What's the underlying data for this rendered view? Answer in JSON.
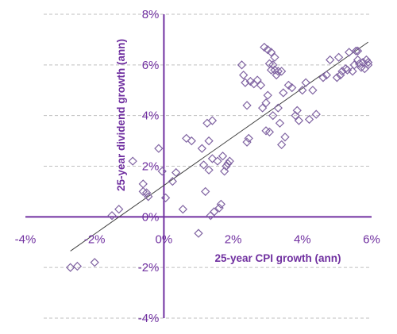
{
  "chart_data": {
    "type": "scatter",
    "title": "",
    "xlabel": "25-year CPI growth (ann)",
    "ylabel": "25-year dividend growth (ann)",
    "xlim": [
      -4,
      6
    ],
    "ylim": [
      -4,
      8
    ],
    "x_ticks": [
      -4,
      -2,
      0,
      2,
      4,
      6
    ],
    "y_ticks": [
      -4,
      -2,
      0,
      2,
      4,
      6,
      8
    ],
    "x_tick_labels": [
      "-4%",
      "-2%",
      "0%",
      "2%",
      "4%",
      "6%"
    ],
    "y_tick_labels": [
      "-4%",
      "-2%",
      "0%",
      "2%",
      "4%",
      "6%",
      "8%"
    ],
    "grid": "horizontal dashed",
    "legend": "none",
    "marker": "hollow-diamond",
    "colors": {
      "accent": "#7030a0",
      "grid": "#bfbfbf",
      "trendline": "#404040"
    },
    "trendline": {
      "x": [
        -2.7,
        5.9
      ],
      "y": [
        -1.35,
        6.9
      ]
    },
    "series": [
      {
        "values": [
          {
            "x": -2.7,
            "y": -2.0
          },
          {
            "x": -2.5,
            "y": -1.95
          },
          {
            "x": -2.0,
            "y": -1.8
          },
          {
            "x": -1.5,
            "y": 0.05
          },
          {
            "x": -1.3,
            "y": 0.3
          },
          {
            "x": -0.9,
            "y": 2.2
          },
          {
            "x": -0.6,
            "y": 1.3
          },
          {
            "x": -0.6,
            "y": 1.0
          },
          {
            "x": -0.5,
            "y": 0.95
          },
          {
            "x": -0.45,
            "y": 0.8
          },
          {
            "x": -0.15,
            "y": 2.7
          },
          {
            "x": -0.05,
            "y": 1.8
          },
          {
            "x": 0.05,
            "y": 0.75
          },
          {
            "x": 0.25,
            "y": 1.4
          },
          {
            "x": 0.35,
            "y": 1.75
          },
          {
            "x": 0.55,
            "y": 0.3
          },
          {
            "x": 0.65,
            "y": 3.1
          },
          {
            "x": 0.8,
            "y": 3.0
          },
          {
            "x": 1.0,
            "y": -0.65
          },
          {
            "x": 1.1,
            "y": 2.7
          },
          {
            "x": 1.15,
            "y": 2.05
          },
          {
            "x": 1.2,
            "y": 1.0
          },
          {
            "x": 1.25,
            "y": 3.7
          },
          {
            "x": 1.3,
            "y": 3.0
          },
          {
            "x": 1.3,
            "y": 1.85
          },
          {
            "x": 1.35,
            "y": 0.05
          },
          {
            "x": 1.4,
            "y": 3.8
          },
          {
            "x": 1.4,
            "y": 2.3
          },
          {
            "x": 1.45,
            "y": 0.2
          },
          {
            "x": 1.55,
            "y": 2.2
          },
          {
            "x": 1.6,
            "y": 0.35
          },
          {
            "x": 1.65,
            "y": 0.5
          },
          {
            "x": 1.7,
            "y": 2.4
          },
          {
            "x": 1.75,
            "y": 1.8
          },
          {
            "x": 1.8,
            "y": 2.0
          },
          {
            "x": 1.85,
            "y": 2.1
          },
          {
            "x": 1.9,
            "y": 2.2
          },
          {
            "x": 2.25,
            "y": 6.0
          },
          {
            "x": 2.3,
            "y": 5.6
          },
          {
            "x": 2.35,
            "y": 5.3
          },
          {
            "x": 2.4,
            "y": 2.95
          },
          {
            "x": 2.45,
            "y": 3.1
          },
          {
            "x": 2.4,
            "y": 4.4
          },
          {
            "x": 2.5,
            "y": 5.35
          },
          {
            "x": 2.6,
            "y": 5.25
          },
          {
            "x": 2.7,
            "y": 5.4
          },
          {
            "x": 2.8,
            "y": 5.2
          },
          {
            "x": 2.85,
            "y": 4.3
          },
          {
            "x": 2.9,
            "y": 6.7
          },
          {
            "x": 2.95,
            "y": 3.4
          },
          {
            "x": 2.95,
            "y": 4.5
          },
          {
            "x": 3.0,
            "y": 6.6
          },
          {
            "x": 3.0,
            "y": 4.8
          },
          {
            "x": 3.05,
            "y": 6.05
          },
          {
            "x": 3.1,
            "y": 6.5
          },
          {
            "x": 3.1,
            "y": 5.8
          },
          {
            "x": 3.15,
            "y": 6.0
          },
          {
            "x": 3.2,
            "y": 5.8
          },
          {
            "x": 3.2,
            "y": 6.3
          },
          {
            "x": 3.25,
            "y": 5.6
          },
          {
            "x": 3.3,
            "y": 5.75
          },
          {
            "x": 3.3,
            "y": 4.3
          },
          {
            "x": 3.35,
            "y": 3.7
          },
          {
            "x": 3.4,
            "y": 5.75
          },
          {
            "x": 3.45,
            "y": 4.9
          },
          {
            "x": 3.5,
            "y": 3.15
          },
          {
            "x": 3.4,
            "y": 2.85
          },
          {
            "x": 3.15,
            "y": 4.0
          },
          {
            "x": 3.05,
            "y": 3.35
          },
          {
            "x": 3.6,
            "y": 5.2
          },
          {
            "x": 3.7,
            "y": 5.1
          },
          {
            "x": 3.8,
            "y": 4.0
          },
          {
            "x": 3.85,
            "y": 4.2
          },
          {
            "x": 3.9,
            "y": 3.8
          },
          {
            "x": 4.0,
            "y": 5.0
          },
          {
            "x": 4.1,
            "y": 5.3
          },
          {
            "x": 4.2,
            "y": 3.85
          },
          {
            "x": 4.3,
            "y": 5.0
          },
          {
            "x": 4.4,
            "y": 4.05
          },
          {
            "x": 4.6,
            "y": 5.5
          },
          {
            "x": 4.7,
            "y": 5.6
          },
          {
            "x": 4.8,
            "y": 6.2
          },
          {
            "x": 5.0,
            "y": 5.5
          },
          {
            "x": 5.05,
            "y": 6.3
          },
          {
            "x": 5.1,
            "y": 5.6
          },
          {
            "x": 5.15,
            "y": 5.75
          },
          {
            "x": 5.25,
            "y": 5.85
          },
          {
            "x": 5.3,
            "y": 5.8
          },
          {
            "x": 5.35,
            "y": 6.5
          },
          {
            "x": 5.45,
            "y": 5.75
          },
          {
            "x": 5.5,
            "y": 6.0
          },
          {
            "x": 5.55,
            "y": 6.55
          },
          {
            "x": 5.6,
            "y": 6.55
          },
          {
            "x": 5.6,
            "y": 6.2
          },
          {
            "x": 5.65,
            "y": 6.05
          },
          {
            "x": 5.7,
            "y": 5.9
          },
          {
            "x": 5.75,
            "y": 6.1
          },
          {
            "x": 5.8,
            "y": 5.85
          },
          {
            "x": 5.85,
            "y": 6.2
          },
          {
            "x": 5.9,
            "y": 6.0
          },
          {
            "x": 5.9,
            "y": 6.1
          }
        ]
      }
    ]
  }
}
